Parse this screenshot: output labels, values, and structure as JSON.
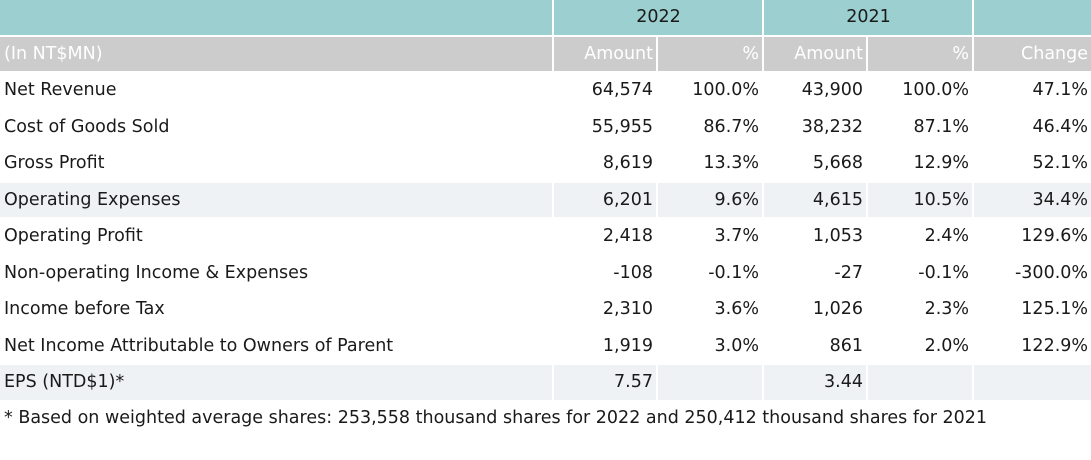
{
  "header": {
    "years": [
      "2022",
      "2021"
    ],
    "unit_label": "(In NT$MN)",
    "columns": [
      "Amount",
      "%",
      "Amount",
      "%",
      "Change"
    ]
  },
  "rows": [
    {
      "label": "Net Revenue",
      "a2022": "64,574",
      "p2022": "100.0%",
      "a2021": "43,900",
      "p2021": "100.0%",
      "change": "47.1%",
      "shaded": false
    },
    {
      "label": "Cost of Goods Sold",
      "a2022": "55,955",
      "p2022": "86.7%",
      "a2021": "38,232",
      "p2021": "87.1%",
      "change": "46.4%",
      "shaded": false
    },
    {
      "label": "Gross Profit",
      "a2022": "8,619",
      "p2022": "13.3%",
      "a2021": "5,668",
      "p2021": "12.9%",
      "change": "52.1%",
      "shaded": false
    },
    {
      "label": "Operating Expenses",
      "a2022": "6,201",
      "p2022": "9.6%",
      "a2021": "4,615",
      "p2021": "10.5%",
      "change": "34.4%",
      "shaded": true
    },
    {
      "label": "Operating Profit",
      "a2022": "2,418",
      "p2022": "3.7%",
      "a2021": "1,053",
      "p2021": "2.4%",
      "change": "129.6%",
      "shaded": false
    },
    {
      "label": "Non-operating Income & Expenses",
      "a2022": "-108",
      "p2022": "-0.1%",
      "a2021": "-27",
      "p2021": "-0.1%",
      "change": "-300.0%",
      "shaded": false
    },
    {
      "label": "Income before Tax",
      "a2022": "2,310",
      "p2022": "3.6%",
      "a2021": "1,026",
      "p2021": "2.3%",
      "change": "125.1%",
      "shaded": false
    },
    {
      "label": "Net Income Attributable to Owners of Parent",
      "a2022": "1,919",
      "p2022": "3.0%",
      "a2021": "861",
      "p2021": "2.0%",
      "change": "122.9%",
      "shaded": false
    },
    {
      "label": "EPS (NTD$1)*",
      "a2022": "7.57",
      "p2022": "",
      "a2021": "3.44",
      "p2021": "",
      "change": "",
      "shaded": true
    }
  ],
  "footnote": "* Based on weighted average shares: 253,558 thousand shares for 2022 and 250,412 thousand shares for 2021",
  "colors": {
    "year_header_bg": "#9ccfcf",
    "column_header_bg": "#cccccc",
    "shaded_row_bg": "#eef2f5"
  }
}
